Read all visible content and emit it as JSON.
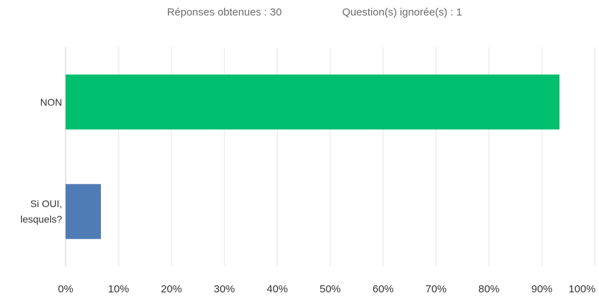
{
  "header": {
    "answered": "Réponses obtenues : 30",
    "skipped": "Question(s) ignorée(s) : 1"
  },
  "chart_data": {
    "type": "hbar",
    "categories": [
      "NON",
      "Si OUI, lesquels?"
    ],
    "values": [
      93.33,
      6.67
    ],
    "colors": [
      "#00bf6f",
      "#507cb6"
    ],
    "xlim": [
      0,
      100
    ],
    "xticks": [
      {
        "value": 0,
        "label": "0%"
      },
      {
        "value": 10,
        "label": "10%"
      },
      {
        "value": 20,
        "label": "20%"
      },
      {
        "value": 30,
        "label": "30%"
      },
      {
        "value": 40,
        "label": "40%"
      },
      {
        "value": 50,
        "label": "50%"
      },
      {
        "value": 60,
        "label": "60%"
      },
      {
        "value": 70,
        "label": "70%"
      },
      {
        "value": 80,
        "label": "80%"
      },
      {
        "value": 90,
        "label": "90%"
      },
      {
        "value": 100,
        "label": "100%"
      }
    ],
    "grid": true
  }
}
